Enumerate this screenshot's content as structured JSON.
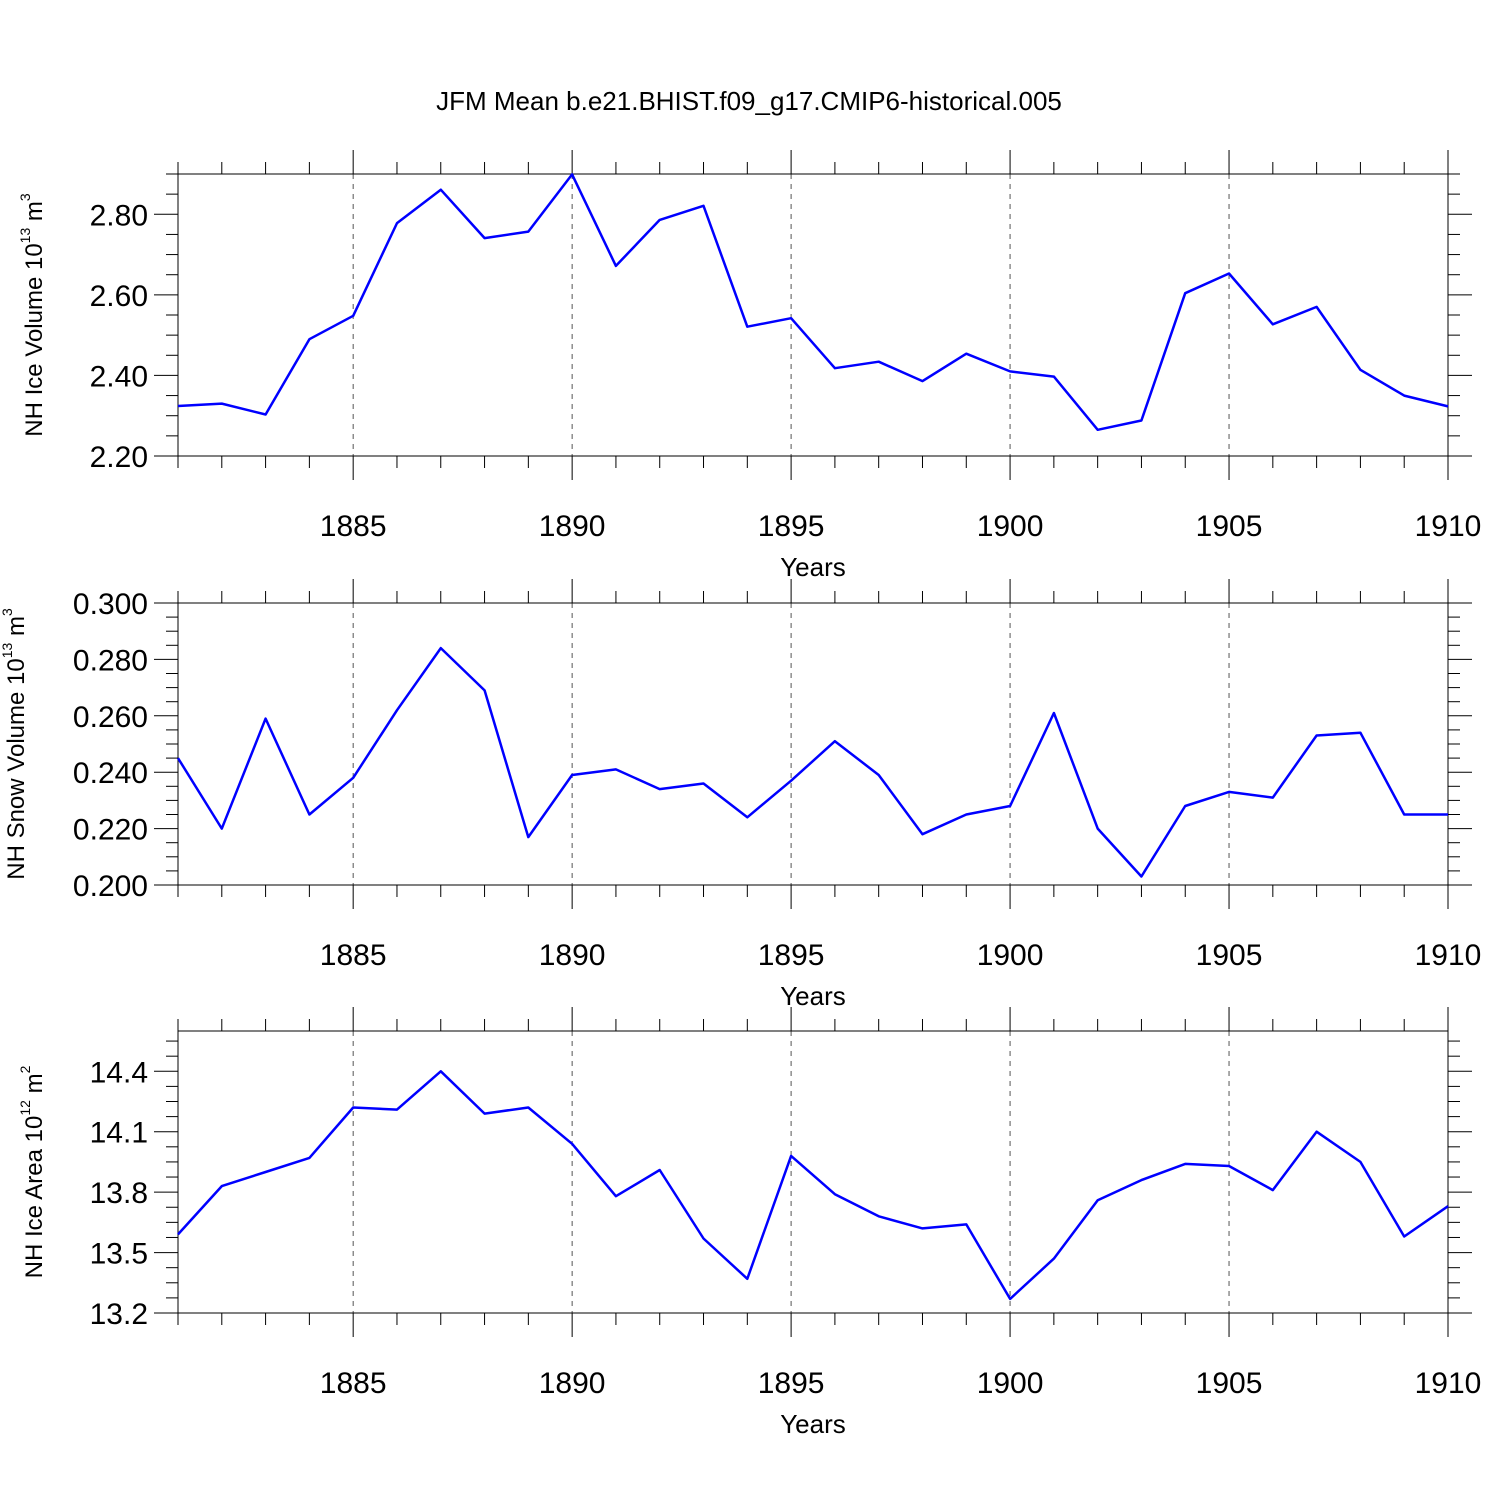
{
  "title": "JFM Mean b.e21.BHIST.f09_g17.CMIP6-historical.005",
  "colors": {
    "series": "#0000ff",
    "grid": "#555555",
    "axis": "#000000"
  },
  "chart_data": [
    {
      "type": "line",
      "ylabel": "NH Ice Volume 10",
      "ylabel_exp": "13",
      "ylabel_unit": " m",
      "ylabel_unit_exp": "3",
      "xlabel": "Years",
      "xlim": [
        1881,
        1910
      ],
      "ylim": [
        2.2,
        2.9
      ],
      "yticks": [
        2.2,
        2.4,
        2.6,
        2.8
      ],
      "ytick_labels": [
        "2.20",
        "2.40",
        "2.60",
        "2.80"
      ],
      "xticks": [
        1885,
        1890,
        1895,
        1900,
        1905,
        1910
      ],
      "xtick_labels": [
        "1885",
        "1890",
        "1895",
        "1900",
        "1905",
        "1910"
      ],
      "grid": "dashed vertical at major x ticks",
      "x": [
        1881,
        1882,
        1883,
        1884,
        1885,
        1886,
        1887,
        1888,
        1889,
        1890,
        1891,
        1892,
        1893,
        1894,
        1895,
        1896,
        1897,
        1898,
        1899,
        1900,
        1901,
        1902,
        1903,
        1904,
        1905,
        1906,
        1907,
        1908,
        1909,
        1910
      ],
      "values": [
        2.324,
        2.33,
        2.303,
        2.49,
        2.548,
        2.778,
        2.861,
        2.741,
        2.757,
        2.899,
        2.672,
        2.786,
        2.821,
        2.521,
        2.542,
        2.418,
        2.434,
        2.386,
        2.454,
        2.41,
        2.397,
        2.265,
        2.288,
        2.604,
        2.653,
        2.527,
        2.57,
        2.414,
        2.35,
        2.323
      ]
    },
    {
      "type": "line",
      "ylabel": "NH Snow Volume 10",
      "ylabel_exp": "13",
      "ylabel_unit": " m",
      "ylabel_unit_exp": "3",
      "xlabel": "Years",
      "xlim": [
        1881,
        1910
      ],
      "ylim": [
        0.2,
        0.3
      ],
      "yticks": [
        0.2,
        0.22,
        0.24,
        0.26,
        0.28,
        0.3
      ],
      "ytick_labels": [
        "0.200",
        "0.220",
        "0.240",
        "0.260",
        "0.280",
        "0.300"
      ],
      "xticks": [
        1885,
        1890,
        1895,
        1900,
        1905,
        1910
      ],
      "xtick_labels": [
        "1885",
        "1890",
        "1895",
        "1900",
        "1905",
        "1910"
      ],
      "grid": "dashed vertical at major x ticks",
      "x": [
        1881,
        1882,
        1883,
        1884,
        1885,
        1886,
        1887,
        1888,
        1889,
        1890,
        1891,
        1892,
        1893,
        1894,
        1895,
        1896,
        1897,
        1898,
        1899,
        1900,
        1901,
        1902,
        1903,
        1904,
        1905,
        1906,
        1907,
        1908,
        1909,
        1910
      ],
      "values": [
        0.245,
        0.22,
        0.259,
        0.225,
        0.238,
        0.262,
        0.284,
        0.269,
        0.217,
        0.239,
        0.241,
        0.234,
        0.236,
        0.224,
        0.237,
        0.251,
        0.239,
        0.218,
        0.225,
        0.228,
        0.261,
        0.22,
        0.203,
        0.228,
        0.233,
        0.231,
        0.253,
        0.254,
        0.225,
        0.225
      ]
    },
    {
      "type": "line",
      "ylabel": "NH Ice Area 10",
      "ylabel_exp": "12",
      "ylabel_unit": " m",
      "ylabel_unit_exp": "2",
      "xlabel": "Years",
      "xlim": [
        1881,
        1910
      ],
      "ylim": [
        13.2,
        14.6
      ],
      "yticks": [
        13.2,
        13.5,
        13.8,
        14.1,
        14.4
      ],
      "ytick_labels": [
        "13.2",
        "13.5",
        "13.8",
        "14.1",
        "14.4"
      ],
      "xticks": [
        1885,
        1890,
        1895,
        1900,
        1905,
        1910
      ],
      "xtick_labels": [
        "1885",
        "1890",
        "1895",
        "1900",
        "1905",
        "1910"
      ],
      "grid": "dashed vertical at major x ticks",
      "x": [
        1881,
        1882,
        1883,
        1884,
        1885,
        1886,
        1887,
        1888,
        1889,
        1890,
        1891,
        1892,
        1893,
        1894,
        1895,
        1896,
        1897,
        1898,
        1899,
        1900,
        1901,
        1902,
        1903,
        1904,
        1905,
        1906,
        1907,
        1908,
        1909,
        1910
      ],
      "values": [
        13.59,
        13.83,
        13.9,
        13.97,
        14.22,
        14.21,
        14.4,
        14.19,
        14.22,
        14.04,
        13.78,
        13.91,
        13.57,
        13.37,
        13.98,
        13.79,
        13.68,
        13.62,
        13.64,
        13.27,
        13.47,
        13.76,
        13.86,
        13.94,
        13.93,
        13.81,
        14.1,
        13.95,
        13.58,
        13.73
      ]
    }
  ]
}
